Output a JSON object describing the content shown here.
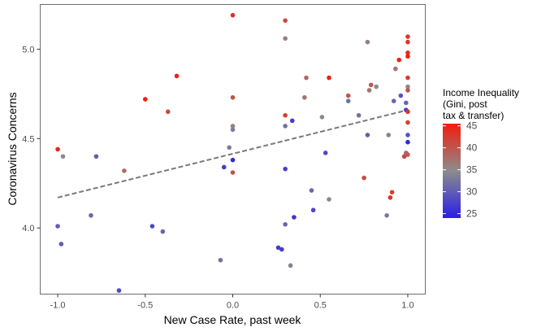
{
  "chart_data": {
    "type": "scatter",
    "xlabel": "New Case Rate, past week",
    "ylabel": "Coronavirus Concerns",
    "xlim": [
      -1.1,
      1.1
    ],
    "ylim": [
      3.63,
      5.25
    ],
    "x_ticks": [
      {
        "value": -1.0,
        "label": "-1.0"
      },
      {
        "value": -0.5,
        "label": "-0.5"
      },
      {
        "value": 0.0,
        "label": "0.0"
      },
      {
        "value": 0.5,
        "label": "0.5"
      },
      {
        "value": 1.0,
        "label": "1.0"
      }
    ],
    "y_ticks": [
      {
        "value": 4.0,
        "label": "4.0"
      },
      {
        "value": 4.5,
        "label": "4.5"
      },
      {
        "value": 5.0,
        "label": "5.0"
      }
    ],
    "grid": false,
    "legend": {
      "title_lines": [
        "Income Inequality",
        "(Gini, post",
        "tax & transfer)"
      ],
      "position": "right",
      "min": 24,
      "max": 45.5,
      "ticks": [
        {
          "value": 45,
          "label": "45"
        },
        {
          "value": 40,
          "label": "40"
        },
        {
          "value": 35,
          "label": "35"
        },
        {
          "value": 30,
          "label": "30"
        },
        {
          "value": 25,
          "label": "25"
        }
      ]
    },
    "colors": {
      "low": "#2a1ee6",
      "mid": "#8c8c8c",
      "high": "#f21c0c",
      "trend": "#7a7a7a",
      "panel_border": "#6e6e6e"
    },
    "trend_line": {
      "x": [
        -1.0,
        1.0
      ],
      "y": [
        4.17,
        4.66
      ],
      "style": "dashed"
    },
    "points": [
      {
        "x": 0.0,
        "y": 5.19,
        "gini": 44
      },
      {
        "x": 0.3,
        "y": 5.16,
        "gini": 41
      },
      {
        "x": 0.3,
        "y": 5.06,
        "gini": 36
      },
      {
        "x": 1.0,
        "y": 5.07,
        "gini": 43
      },
      {
        "x": 1.0,
        "y": 5.04,
        "gini": 43
      },
      {
        "x": 1.0,
        "y": 4.98,
        "gini": 44
      },
      {
        "x": 1.0,
        "y": 4.96,
        "gini": 45
      },
      {
        "x": 0.95,
        "y": 4.94,
        "gini": 45
      },
      {
        "x": 0.77,
        "y": 5.04,
        "gini": 36
      },
      {
        "x": 0.93,
        "y": 4.89,
        "gini": 37
      },
      {
        "x": -0.32,
        "y": 4.85,
        "gini": 45
      },
      {
        "x": 0.55,
        "y": 4.84,
        "gini": 45
      },
      {
        "x": 0.42,
        "y": 4.84,
        "gini": 38
      },
      {
        "x": 1.0,
        "y": 4.84,
        "gini": 42
      },
      {
        "x": 0.79,
        "y": 4.8,
        "gini": 40
      },
      {
        "x": 0.82,
        "y": 4.79,
        "gini": 35
      },
      {
        "x": 1.0,
        "y": 4.79,
        "gini": 35
      },
      {
        "x": 0.78,
        "y": 4.77,
        "gini": 37
      },
      {
        "x": 1.0,
        "y": 4.77,
        "gini": 40
      },
      {
        "x": -0.5,
        "y": 4.72,
        "gini": 45
      },
      {
        "x": 0.0,
        "y": 4.73,
        "gini": 40
      },
      {
        "x": 0.41,
        "y": 4.73,
        "gini": 37
      },
      {
        "x": 0.66,
        "y": 4.74,
        "gini": 40
      },
      {
        "x": 0.66,
        "y": 4.71,
        "gini": 32
      },
      {
        "x": 0.92,
        "y": 4.71,
        "gini": 31
      },
      {
        "x": 0.96,
        "y": 4.74,
        "gini": 29
      },
      {
        "x": 0.99,
        "y": 4.7,
        "gini": 31
      },
      {
        "x": -0.37,
        "y": 4.65,
        "gini": 41
      },
      {
        "x": 0.99,
        "y": 4.66,
        "gini": 27
      },
      {
        "x": 1.0,
        "y": 4.65,
        "gini": 43
      },
      {
        "x": 0.72,
        "y": 4.63,
        "gini": 32
      },
      {
        "x": 0.3,
        "y": 4.63,
        "gini": 42
      },
      {
        "x": 0.51,
        "y": 4.62,
        "gini": 35
      },
      {
        "x": 0.34,
        "y": 4.6,
        "gini": 27
      },
      {
        "x": 1.0,
        "y": 4.59,
        "gini": 42
      },
      {
        "x": 0.0,
        "y": 4.57,
        "gini": 36
      },
      {
        "x": 0.0,
        "y": 4.55,
        "gini": 33
      },
      {
        "x": 0.3,
        "y": 4.57,
        "gini": 32
      },
      {
        "x": 0.77,
        "y": 4.52,
        "gini": 30
      },
      {
        "x": 0.89,
        "y": 4.52,
        "gini": 34
      },
      {
        "x": 1.0,
        "y": 4.52,
        "gini": 29
      },
      {
        "x": -1.0,
        "y": 4.44,
        "gini": 45
      },
      {
        "x": -0.97,
        "y": 4.4,
        "gini": 35
      },
      {
        "x": 1.0,
        "y": 4.48,
        "gini": 25
      },
      {
        "x": -0.78,
        "y": 4.4,
        "gini": 30
      },
      {
        "x": 0.0,
        "y": 4.38,
        "gini": 25
      },
      {
        "x": -0.02,
        "y": 4.45,
        "gini": 33
      },
      {
        "x": 0.53,
        "y": 4.42,
        "gini": 28
      },
      {
        "x": 0.99,
        "y": 4.42,
        "gini": 38
      },
      {
        "x": 0.98,
        "y": 4.4,
        "gini": 40
      },
      {
        "x": 1.0,
        "y": 4.41,
        "gini": 39
      },
      {
        "x": 0.98,
        "y": 4.4,
        "gini": 41
      },
      {
        "x": 0.3,
        "y": 4.33,
        "gini": 27
      },
      {
        "x": -0.05,
        "y": 4.34,
        "gini": 27
      },
      {
        "x": -0.62,
        "y": 4.32,
        "gini": 38
      },
      {
        "x": 0.0,
        "y": 4.31,
        "gini": 40
      },
      {
        "x": 0.75,
        "y": 4.28,
        "gini": 41
      },
      {
        "x": 0.45,
        "y": 4.21,
        "gini": 31
      },
      {
        "x": 0.91,
        "y": 4.2,
        "gini": 42
      },
      {
        "x": 0.9,
        "y": 4.17,
        "gini": 43
      },
      {
        "x": 0.55,
        "y": 4.16,
        "gini": 35
      },
      {
        "x": 0.46,
        "y": 4.1,
        "gini": 28
      },
      {
        "x": 0.88,
        "y": 4.07,
        "gini": 33
      },
      {
        "x": -0.81,
        "y": 4.07,
        "gini": 31
      },
      {
        "x": 0.35,
        "y": 4.06,
        "gini": 26
      },
      {
        "x": 0.3,
        "y": 4.02,
        "gini": 31
      },
      {
        "x": -1.0,
        "y": 4.01,
        "gini": 30
      },
      {
        "x": -0.46,
        "y": 4.01,
        "gini": 28
      },
      {
        "x": -0.4,
        "y": 3.98,
        "gini": 31
      },
      {
        "x": -0.98,
        "y": 3.91,
        "gini": 30
      },
      {
        "x": 0.26,
        "y": 3.89,
        "gini": 27
      },
      {
        "x": 0.28,
        "y": 3.88,
        "gini": 27
      },
      {
        "x": -0.07,
        "y": 3.82,
        "gini": 32
      },
      {
        "x": 0.33,
        "y": 3.79,
        "gini": 34
      },
      {
        "x": -0.65,
        "y": 3.65,
        "gini": 28
      }
    ]
  }
}
